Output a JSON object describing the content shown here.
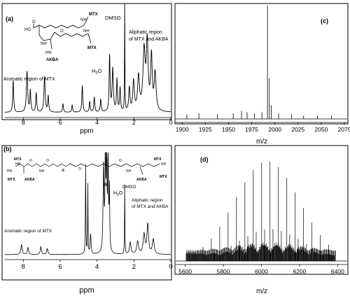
{
  "colors": {
    "ink": "#000000",
    "background": "#ffffff"
  },
  "chart_data": [
    {
      "panel": "(a)",
      "type": "line",
      "xlabel": "ppm",
      "x_reversed": true,
      "xlim": [
        9.0,
        0
      ],
      "ticks": [
        8,
        6,
        4,
        2,
        0
      ],
      "annotations": [
        "DMSO",
        "H2O",
        "Aliphatic region of MTX and AKBA",
        "Aromatic region of MTX"
      ],
      "structure_labels": [
        "HO",
        "O",
        "NH",
        "MTX",
        "HN",
        "AKBA",
        "NH",
        "MTX",
        "O",
        "NH"
      ],
      "peaks": [
        {
          "x": 8.55,
          "y": 0.3,
          "w": 0.03
        },
        {
          "x": 7.8,
          "y": 0.38,
          "w": 0.04
        },
        {
          "x": 7.62,
          "y": 0.2,
          "w": 0.03
        },
        {
          "x": 7.3,
          "y": 0.18,
          "w": 0.03
        },
        {
          "x": 6.85,
          "y": 0.33,
          "w": 0.04
        },
        {
          "x": 6.65,
          "y": 0.15,
          "w": 0.03
        },
        {
          "x": 5.85,
          "y": 0.08,
          "w": 0.03
        },
        {
          "x": 5.35,
          "y": 0.07,
          "w": 0.03
        },
        {
          "x": 4.8,
          "y": 0.25,
          "w": 0.03
        },
        {
          "x": 4.4,
          "y": 0.1,
          "w": 0.03
        },
        {
          "x": 4.15,
          "y": 0.14,
          "w": 0.03
        },
        {
          "x": 3.8,
          "y": 0.12,
          "w": 0.03
        },
        {
          "x": 3.32,
          "y": 0.52,
          "w": 0.03
        },
        {
          "x": 3.15,
          "y": 0.4,
          "w": 0.04
        },
        {
          "x": 2.92,
          "y": 0.3,
          "w": 0.03
        },
        {
          "x": 2.75,
          "y": 0.22,
          "w": 0.03
        },
        {
          "x": 2.5,
          "y": 1.0,
          "w": 0.012
        },
        {
          "x": 2.25,
          "y": 0.22,
          "w": 0.04
        },
        {
          "x": 2.02,
          "y": 0.28,
          "w": 0.05
        },
        {
          "x": 1.75,
          "y": 0.32,
          "w": 0.06
        },
        {
          "x": 1.45,
          "y": 0.55,
          "w": 0.07
        },
        {
          "x": 1.28,
          "y": 0.62,
          "w": 0.06
        },
        {
          "x": 1.05,
          "y": 0.5,
          "w": 0.05
        },
        {
          "x": 0.85,
          "y": 0.35,
          "w": 0.06
        }
      ]
    },
    {
      "panel": "(c)",
      "type": "line",
      "xlabel": "m/z",
      "xlim": [
        1893,
        2078
      ],
      "ticks": [
        1900,
        1925,
        1950,
        1975,
        2000,
        2025,
        2050,
        2075
      ],
      "peaks": [
        {
          "x": 1992,
          "y": 1.0
        },
        {
          "x": 1994,
          "y": 0.36
        },
        {
          "x": 1996,
          "y": 0.12
        },
        {
          "x": 1905,
          "y": 0.04
        },
        {
          "x": 1918,
          "y": 0.05
        },
        {
          "x": 1938,
          "y": 0.04
        },
        {
          "x": 1955,
          "y": 0.05
        },
        {
          "x": 1964,
          "y": 0.07
        },
        {
          "x": 1970,
          "y": 0.06
        },
        {
          "x": 1978,
          "y": 0.05
        },
        {
          "x": 1986,
          "y": 0.06
        },
        {
          "x": 2004,
          "y": 0.05
        },
        {
          "x": 2018,
          "y": 0.04
        },
        {
          "x": 2031,
          "y": 0.03
        },
        {
          "x": 2046,
          "y": 0.03
        },
        {
          "x": 2061,
          "y": 0.03
        }
      ]
    },
    {
      "panel": "(b)",
      "type": "line",
      "xlabel": "ppm",
      "x_reversed": true,
      "xlim": [
        9.0,
        0
      ],
      "ticks": [
        8,
        6,
        4,
        2,
        0
      ],
      "annotations": [
        "a",
        "H2O",
        "DMSO",
        "Aliphatic region of MTX and AKBA",
        "Aromatic region of MTX"
      ],
      "structure_labels": [
        "MTX",
        "HN",
        "O",
        "NH",
        "MTX",
        "AKBA",
        "HN",
        "O",
        "a",
        "O",
        "O",
        "MTX",
        "NH",
        "NH",
        "AKBA",
        "MTX"
      ],
      "peaks": [
        {
          "x": 8.1,
          "y": 0.1,
          "w": 0.04
        },
        {
          "x": 7.75,
          "y": 0.07,
          "w": 0.04
        },
        {
          "x": 7.05,
          "y": 0.08,
          "w": 0.04
        },
        {
          "x": 6.7,
          "y": 0.06,
          "w": 0.04
        },
        {
          "x": 4.62,
          "y": 0.9,
          "w": 0.015
        },
        {
          "x": 4.5,
          "y": 0.7,
          "w": 0.012
        },
        {
          "x": 4.35,
          "y": 0.2,
          "w": 0.03
        },
        {
          "x": 3.65,
          "y": 0.85,
          "w": 0.03
        },
        {
          "x": 3.55,
          "y": 1.0,
          "w": 0.025
        },
        {
          "x": 3.48,
          "y": 0.98,
          "w": 0.025
        },
        {
          "x": 3.4,
          "y": 0.9,
          "w": 0.025
        },
        {
          "x": 3.33,
          "y": 0.6,
          "w": 0.02
        },
        {
          "x": 2.5,
          "y": 0.7,
          "w": 0.012
        },
        {
          "x": 2.2,
          "y": 0.12,
          "w": 0.05
        },
        {
          "x": 1.8,
          "y": 0.13,
          "w": 0.06
        },
        {
          "x": 1.45,
          "y": 0.2,
          "w": 0.06
        },
        {
          "x": 1.25,
          "y": 0.3,
          "w": 0.05
        },
        {
          "x": 0.95,
          "y": 0.15,
          "w": 0.06
        }
      ]
    },
    {
      "panel": "(d)",
      "type": "line",
      "xlabel": "m/z",
      "xlim": [
        5550,
        6450
      ],
      "ticks": [
        5600,
        5800,
        6000,
        6200,
        6400
      ],
      "envelope": {
        "start": 5605,
        "end": 6390,
        "spacing": 44,
        "center": 6030,
        "sigma": 170,
        "height": 0.92
      }
    }
  ]
}
